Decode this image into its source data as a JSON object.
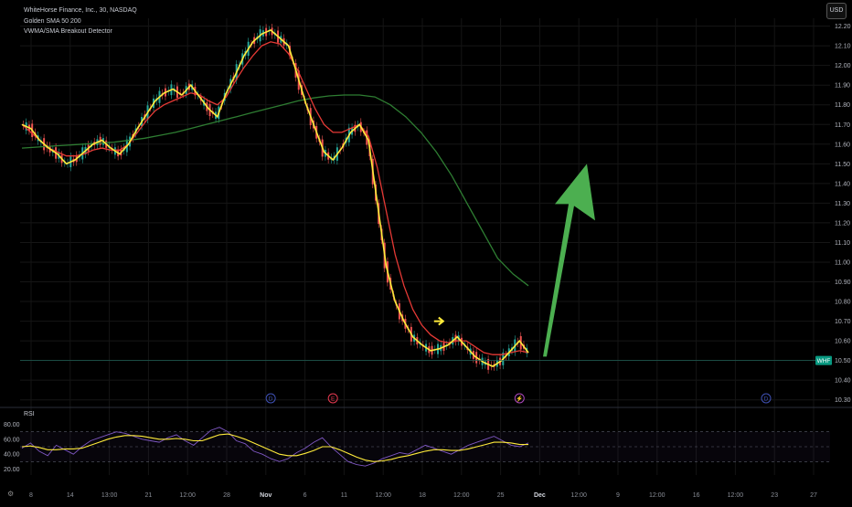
{
  "legend": {
    "symbol": "WhiteHorse Finance, Inc., 30, NASDAQ",
    "indicator_1": "Golden SMA 50 200",
    "indicator_2": "VWMA/SMA Breakout Detector"
  },
  "currency_label": "USD",
  "price_tag": {
    "label": "WHF",
    "value": 10.5
  },
  "rsi_label": "RSI",
  "colors": {
    "price_line": "#ffeb3b",
    "sma50": "#e53935",
    "sma200": "#2e7d32",
    "candle_up": "#26a69a",
    "candle_down": "#ef5350",
    "arrow": "#4caf50",
    "rsi_line": "#7e57c2",
    "rsi_ma": "#ffeb3b",
    "tag": "#089981"
  },
  "chart_data": [
    {
      "type": "line",
      "panel": "price",
      "ylim": [
        10.28,
        12.24
      ],
      "y_ticks": [
        "12.20",
        "12.10",
        "12.00",
        "11.90",
        "11.80",
        "11.70",
        "11.60",
        "11.50",
        "11.40",
        "11.30",
        "11.20",
        "11.10",
        "11.00",
        "10.90",
        "10.80",
        "10.70",
        "10.60",
        "10.50",
        "10.40",
        "10.30"
      ],
      "x_ticks": [
        "8",
        "14",
        "13:00",
        "21",
        "12:00",
        "28",
        "Nov",
        "6",
        "11",
        "12:00",
        "18",
        "12:00",
        "25",
        "Dec",
        "12:00",
        "9",
        "12:00",
        "16",
        "12:00",
        "23",
        "27"
      ],
      "series": [
        {
          "role": "price",
          "values": [
            11.7,
            11.68,
            11.62,
            11.58,
            11.55,
            11.5,
            11.52,
            11.56,
            11.6,
            11.62,
            11.58,
            11.55,
            11.6,
            11.68,
            11.75,
            11.82,
            11.86,
            11.88,
            11.85,
            11.9,
            11.84,
            11.78,
            11.74,
            11.86,
            11.95,
            12.05,
            12.12,
            12.16,
            12.18,
            12.14,
            12.1,
            11.95,
            11.8,
            11.68,
            11.56,
            11.52,
            11.58,
            11.66,
            11.7,
            11.62,
            11.3,
            10.98,
            10.8,
            10.7,
            10.62,
            10.58,
            10.55,
            10.56,
            10.58,
            10.62,
            10.57,
            10.52,
            10.49,
            10.47,
            10.5,
            10.55,
            10.6,
            10.54
          ]
        },
        {
          "name": "SMA 50",
          "values": [
            11.7,
            11.66,
            11.62,
            11.58,
            11.56,
            11.54,
            11.54,
            11.55,
            11.57,
            11.58,
            11.57,
            11.57,
            11.6,
            11.66,
            11.72,
            11.77,
            11.8,
            11.82,
            11.84,
            11.86,
            11.85,
            11.82,
            11.8,
            11.84,
            11.92,
            11.99,
            12.05,
            12.1,
            12.12,
            12.11,
            12.06,
            11.98,
            11.88,
            11.78,
            11.7,
            11.66,
            11.66,
            11.68,
            11.7,
            11.64,
            11.48,
            11.26,
            11.04,
            10.88,
            10.76,
            10.68,
            10.63,
            10.6,
            10.59,
            10.6,
            10.6,
            10.57,
            10.54,
            10.53,
            10.53,
            10.54,
            10.55,
            10.54
          ]
        },
        {
          "name": "SMA 200",
          "values": [
            11.58,
            11.585,
            11.59,
            11.595,
            11.6,
            11.605,
            11.61,
            11.62,
            11.63,
            11.645,
            11.66,
            11.68,
            11.7,
            11.72,
            11.74,
            11.76,
            11.78,
            11.8,
            11.82,
            11.835,
            11.845,
            11.85,
            11.85,
            11.84,
            11.8,
            11.74,
            11.66,
            11.56,
            11.44,
            11.3,
            11.16,
            11.02,
            10.94,
            10.88
          ]
        }
      ],
      "annotations": [
        {
          "type": "flag",
          "label": "D",
          "x_index": 28
        },
        {
          "type": "flag",
          "label": "E",
          "x_index": 35
        },
        {
          "type": "flag",
          "label": "⚡",
          "x_index": 56
        },
        {
          "type": "flag",
          "label": "D",
          "x_index": 82
        },
        {
          "type": "marker-arrow",
          "x_index": 47,
          "y": 10.7
        },
        {
          "type": "big-up-arrow",
          "from_y": 10.52,
          "to_y": 11.5
        }
      ]
    },
    {
      "type": "line",
      "panel": "rsi",
      "ylim": [
        12,
        88
      ],
      "y_ticks": [
        "80.00",
        "60.00",
        "40.00",
        "20.00"
      ],
      "bands": [
        70,
        50,
        30
      ],
      "series": [
        {
          "name": "RSI",
          "values": [
            48,
            55,
            44,
            38,
            52,
            46,
            40,
            50,
            58,
            62,
            66,
            70,
            68,
            64,
            60,
            58,
            56,
            62,
            66,
            58,
            52,
            62,
            72,
            76,
            70,
            58,
            54,
            44,
            40,
            34,
            30,
            34,
            42,
            48,
            56,
            62,
            50,
            40,
            30,
            26,
            24,
            28,
            34,
            38,
            42,
            40,
            46,
            52,
            48,
            44,
            40,
            46,
            52,
            56,
            60,
            64,
            58,
            52,
            50,
            55
          ]
        },
        {
          "name": "RSI MA",
          "values": [
            50,
            51,
            49,
            46,
            46,
            47,
            47,
            48,
            52,
            56,
            60,
            63,
            65,
            65,
            64,
            62,
            60,
            60,
            61,
            60,
            58,
            58,
            62,
            66,
            67,
            64,
            60,
            55,
            50,
            45,
            40,
            38,
            38,
            41,
            45,
            50,
            50,
            46,
            41,
            36,
            32,
            30,
            31,
            33,
            36,
            38,
            41,
            44,
            46,
            46,
            45,
            45,
            47,
            50,
            53,
            56,
            56,
            55,
            53,
            53
          ]
        }
      ]
    }
  ]
}
